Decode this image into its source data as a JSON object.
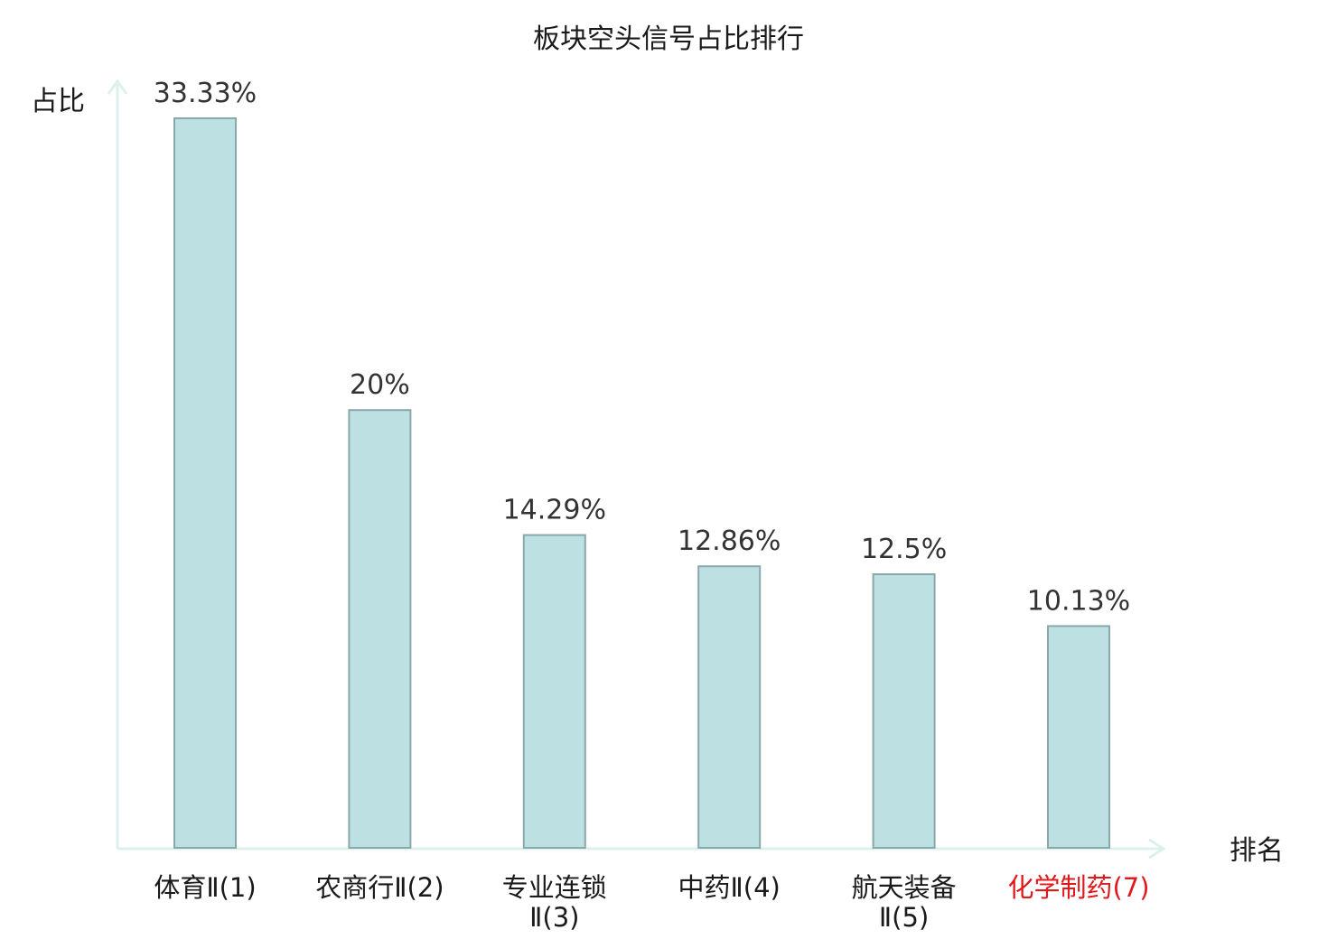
{
  "chart_data": {
    "type": "bar",
    "title": "板块空头信号占比排行",
    "ylabel": "占比",
    "xlabel": "排名",
    "ylim": [
      0,
      35
    ],
    "grid": false,
    "categories": [
      [
        "体育Ⅱ(1)"
      ],
      [
        "农商行Ⅱ(2)"
      ],
      [
        "专业连锁",
        "Ⅱ(3)"
      ],
      [
        "中药Ⅱ(4)"
      ],
      [
        "航天装备",
        "Ⅱ(5)"
      ],
      [
        "化学制药(7)"
      ]
    ],
    "values": [
      33.33,
      20,
      14.29,
      12.86,
      12.5,
      10.13
    ],
    "value_labels": [
      "33.33%",
      "20%",
      "14.29%",
      "12.86%",
      "12.5%",
      "10.13%"
    ],
    "highlight_index": 5
  },
  "colors": {
    "bar_fill": "#bde0e2",
    "bar_stroke": "#8aa8aa",
    "axis": "#dcf0ec",
    "text": "#1a1a1a",
    "value_text": "#333333",
    "highlight": "#e0191c"
  }
}
